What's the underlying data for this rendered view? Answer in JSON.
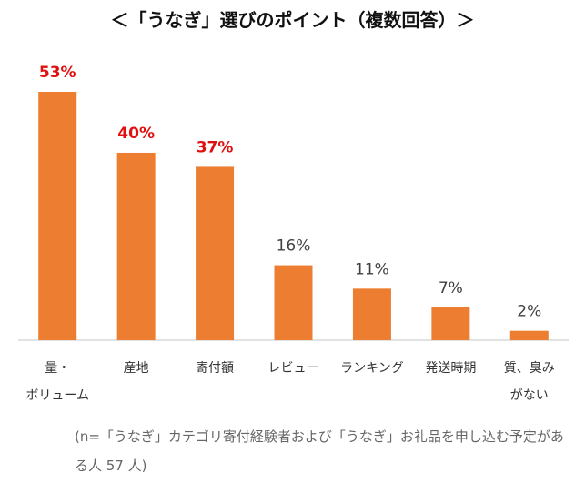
{
  "title": "＜「うなぎ」選びのポイント（複数回答）＞",
  "chart_data": {
    "type": "bar",
    "categories": [
      "量・\nボリューム",
      "産地",
      "寄付額",
      "レビュー",
      "ランキング",
      "発送時期",
      "質、臭み\nがない"
    ],
    "values": [
      53,
      40,
      37,
      16,
      11,
      7,
      2
    ],
    "value_labels": [
      "53%",
      "40%",
      "37%",
      "16%",
      "11%",
      "7%",
      "2%"
    ],
    "highlighted": [
      true,
      true,
      true,
      false,
      false,
      false,
      false
    ],
    "ylim": [
      0,
      53
    ],
    "xlabel": "",
    "ylabel": "",
    "grid": false,
    "legend": "none"
  },
  "colors": {
    "bar": "#ED7D31",
    "highlight_label": "#E01010",
    "label": "#404040",
    "axis": "#D9D9D9"
  },
  "note": "(n=「うなぎ」カテゴリ寄付経験者および「うなぎ」お礼品を申し込む予定がある人 57 人)"
}
